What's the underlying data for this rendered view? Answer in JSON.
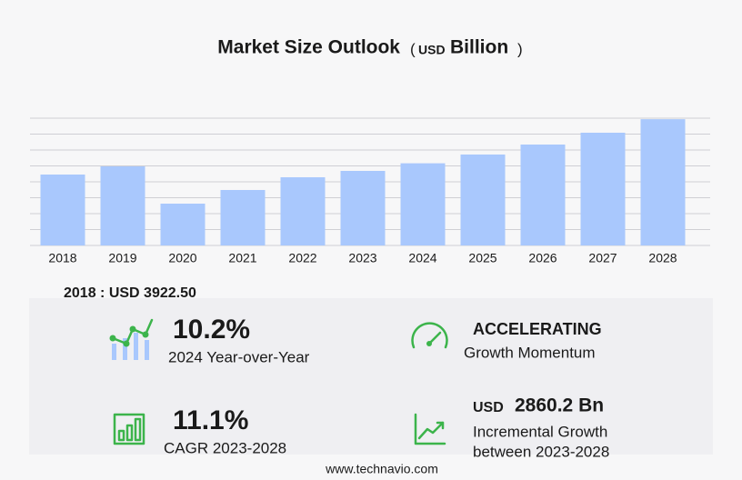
{
  "chart_data": {
    "type": "bar",
    "title": "Market Size Outlook",
    "unit_open": "(",
    "unit_prefix": "USD",
    "unit": "Billion",
    "unit_close": ")",
    "categories": [
      "2018",
      "2019",
      "2020",
      "2021",
      "2022",
      "2023",
      "2024",
      "2025",
      "2026",
      "2027",
      "2028"
    ],
    "values": [
      3922.5,
      4375,
      2313,
      3068,
      3772,
      4124,
      4545,
      5030,
      5582,
      6236,
      6984
    ],
    "color": "#a9c8fd",
    "ylim": [
      0,
      7040
    ],
    "yticks": [
      0,
      880,
      1760,
      2640,
      3520,
      4400,
      5280,
      6160,
      7040
    ],
    "grid": true,
    "highlight_label": "2018 : USD  3922.50"
  },
  "stats": {
    "yoy_value": "10.2%",
    "yoy_label": "2024 Year-over-Year",
    "momentum_value": "ACCELERATING",
    "momentum_label": "Growth Momentum",
    "cagr_value": "11.1%",
    "cagr_label": "CAGR 2023-2028",
    "increment_prefix": "USD",
    "increment_value": "2860.2 Bn",
    "increment_label_1": "Incremental Growth",
    "increment_label_2": "between 2023-2028"
  },
  "footer": "www.technavio.com"
}
